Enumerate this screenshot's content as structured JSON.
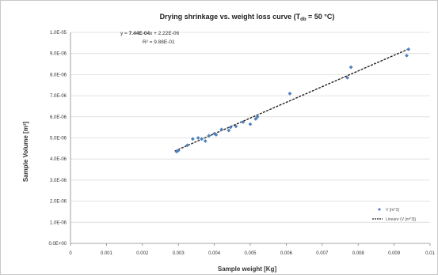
{
  "chart_data": {
    "type": "scatter",
    "title": "Drying shrinkage vs. weight loss curve (T db = 50 °C)",
    "title_parts": {
      "prefix": "Drying shrinkage vs. weight loss curve (T",
      "subscript": "db",
      "suffix": " = 50 °C)"
    },
    "xlabel": "Sample weight [Kg]",
    "ylabel": "Sample Volume [m³]",
    "xlim": [
      0,
      0.01
    ],
    "ylim": [
      0,
      1e-05
    ],
    "x_ticks": [
      "0",
      "0.001",
      "0.002",
      "0.003",
      "0.004",
      "0.005",
      "0.006",
      "0.007",
      "0.008",
      "0.009",
      "0.01"
    ],
    "y_ticks": [
      "0.0E+00",
      "1.0E-06",
      "2.0E-06",
      "3.0E-06",
      "4.0E-06",
      "5.0E-06",
      "6.0E-06",
      "7.0E-06",
      "8.0E-06",
      "9.0E-06",
      "1.0E-05"
    ],
    "grid": {
      "x": false,
      "y": true
    },
    "legend_position": "right",
    "series": [
      {
        "name": "V [m^3]",
        "kind": "points",
        "color": "#4f81bd",
        "x": [
          0.00295,
          0.003,
          0.00325,
          0.0034,
          0.00355,
          0.00365,
          0.00375,
          0.00385,
          0.004,
          0.00405,
          0.0042,
          0.0044,
          0.00445,
          0.0046,
          0.0048,
          0.005,
          0.00515,
          0.0052,
          0.0061,
          0.0077,
          0.0078,
          0.00935,
          0.0094
        ],
        "y": [
          4.35e-06,
          4.4e-06,
          4.65e-06,
          4.95e-06,
          5e-06,
          4.95e-06,
          4.85e-06,
          5.1e-06,
          5.2e-06,
          5.15e-06,
          5.4e-06,
          5.35e-06,
          5.5e-06,
          5.55e-06,
          5.75e-06,
          5.65e-06,
          5.9e-06,
          6e-06,
          7.1e-06,
          7.85e-06,
          8.35e-06,
          8.9e-06,
          9.2e-06
        ]
      },
      {
        "name": "Lineare (V [m^3])",
        "kind": "trendline",
        "color": "#222222",
        "x": [
          0.0029,
          0.0094
        ],
        "y": [
          4.378e-06,
          9.214e-06
        ]
      }
    ],
    "annotations": {
      "equation_prefix": "y = ",
      "equation_slope": "7.44E-04",
      "equation_suffix": "x + 2.22E-06",
      "r_squared": "R² = 9.88E-01"
    }
  }
}
